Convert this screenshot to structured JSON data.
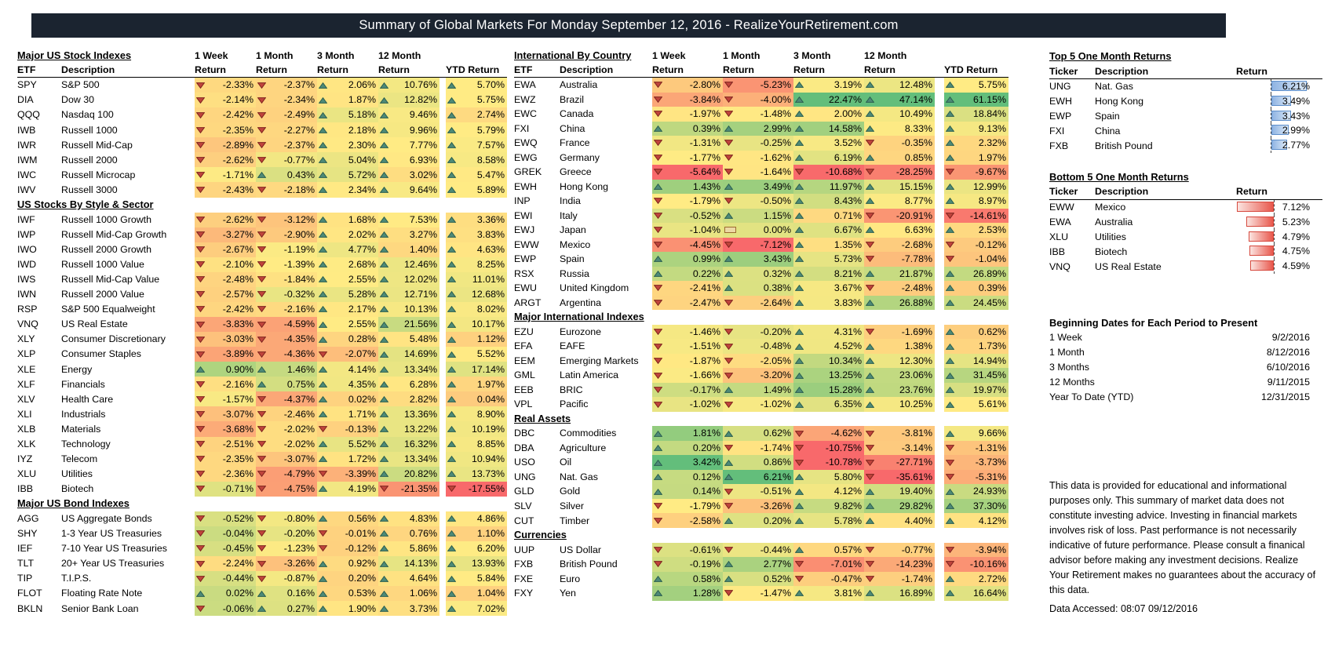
{
  "title_bar": {
    "text": "Summary of Global Markets For Monday September 12, 2016 - RealizeYourRetirement.com"
  },
  "labels": {
    "etf": "ETF",
    "description": "Description",
    "return": "Return",
    "ytd": "YTD Return",
    "ticker": "Ticker"
  },
  "period_headers": [
    "1 Week",
    "1 Month",
    "3 Month",
    "12 Month"
  ],
  "colors": {
    "heat_red": "#F8696B",
    "heat_yellow": "#FFEB84",
    "heat_green": "#63BE7B",
    "up_arrow": "#4E8A78",
    "up_arrow_border": "#2A5F50",
    "down_arrow": "#C0443C",
    "down_arrow_border": "#7E231E",
    "bar_blue": "#8FB4E3",
    "bar_red": "#E8574C",
    "title_bg": "#1B2430"
  },
  "left_table": {
    "sections": [
      {
        "title": "Major US Stock Indexes",
        "rows": [
          {
            "ticker": "SPY",
            "desc": "S&P 500",
            "values": [
              -2.33,
              -2.37,
              2.06,
              10.76,
              5.7
            ]
          },
          {
            "ticker": "DIA",
            "desc": "Dow 30",
            "values": [
              -2.14,
              -2.34,
              1.87,
              12.82,
              5.75
            ]
          },
          {
            "ticker": "QQQ",
            "desc": "Nasdaq 100",
            "values": [
              -2.42,
              -2.49,
              5.18,
              9.46,
              2.74
            ]
          },
          {
            "ticker": "IWB",
            "desc": "Russell 1000",
            "values": [
              -2.35,
              -2.27,
              2.18,
              9.96,
              5.79
            ]
          },
          {
            "ticker": "IWR",
            "desc": "Russell Mid-Cap",
            "values": [
              -2.89,
              -2.37,
              2.3,
              7.77,
              7.57
            ]
          },
          {
            "ticker": "IWM",
            "desc": "Russell 2000",
            "values": [
              -2.62,
              -0.77,
              5.04,
              6.93,
              8.58
            ]
          },
          {
            "ticker": "IWC",
            "desc": "Russell Microcap",
            "values": [
              -1.71,
              0.43,
              5.72,
              3.02,
              5.47
            ]
          },
          {
            "ticker": "IWV",
            "desc": "Russell 3000",
            "values": [
              -2.43,
              -2.18,
              2.34,
              9.64,
              5.89
            ]
          }
        ]
      },
      {
        "title": "US Stocks By Style & Sector",
        "rows": [
          {
            "ticker": "IWF",
            "desc": "Russell 1000 Growth",
            "values": [
              -2.62,
              -3.12,
              1.68,
              7.53,
              3.36
            ]
          },
          {
            "ticker": "IWP",
            "desc": "Russell Mid-Cap Growth",
            "values": [
              -3.27,
              -2.9,
              2.02,
              3.27,
              3.83
            ]
          },
          {
            "ticker": "IWO",
            "desc": "Russell 2000 Growth",
            "values": [
              -2.67,
              -1.19,
              4.77,
              1.4,
              4.63
            ]
          },
          {
            "ticker": "IWD",
            "desc": "Russell 1000 Value",
            "values": [
              -2.1,
              -1.39,
              2.68,
              12.46,
              8.25
            ]
          },
          {
            "ticker": "IWS",
            "desc": "Russell Mid-Cap Value",
            "values": [
              -2.48,
              -1.84,
              2.55,
              12.02,
              11.01
            ]
          },
          {
            "ticker": "IWN",
            "desc": "Russell 2000 Value",
            "values": [
              -2.57,
              -0.32,
              5.28,
              12.71,
              12.68
            ]
          },
          {
            "ticker": "RSP",
            "desc": "S&P 500 Equalweight",
            "values": [
              -2.42,
              -2.16,
              2.17,
              10.13,
              8.02
            ]
          },
          {
            "ticker": "VNQ",
            "desc": "US Real Estate",
            "values": [
              -3.83,
              -4.59,
              2.55,
              21.56,
              10.17
            ]
          },
          {
            "ticker": "XLY",
            "desc": "Consumer Discretionary",
            "values": [
              -3.03,
              -4.35,
              0.28,
              5.48,
              1.12
            ]
          },
          {
            "ticker": "XLP",
            "desc": "Consumer Staples",
            "values": [
              -3.89,
              -4.36,
              -2.07,
              14.69,
              5.52
            ]
          },
          {
            "ticker": "XLE",
            "desc": "Energy",
            "values": [
              0.9,
              1.46,
              4.14,
              13.34,
              17.14
            ]
          },
          {
            "ticker": "XLF",
            "desc": "Financials",
            "values": [
              -2.16,
              0.75,
              4.35,
              6.28,
              1.97
            ]
          },
          {
            "ticker": "XLV",
            "desc": "Health Care",
            "values": [
              -1.57,
              -4.37,
              0.02,
              2.82,
              0.04
            ]
          },
          {
            "ticker": "XLI",
            "desc": "Industrials",
            "values": [
              -3.07,
              -2.46,
              1.71,
              13.36,
              8.9
            ]
          },
          {
            "ticker": "XLB",
            "desc": "Materials",
            "values": [
              -3.68,
              -2.02,
              -0.13,
              13.22,
              10.19
            ]
          },
          {
            "ticker": "XLK",
            "desc": "Technology",
            "values": [
              -2.51,
              -2.02,
              5.52,
              16.32,
              8.85
            ]
          },
          {
            "ticker": "IYZ",
            "desc": "Telecom",
            "values": [
              -2.35,
              -3.07,
              1.72,
              13.34,
              10.94
            ]
          },
          {
            "ticker": "XLU",
            "desc": "Utilities",
            "values": [
              -2.36,
              -4.79,
              -3.39,
              20.82,
              13.73
            ]
          },
          {
            "ticker": "IBB",
            "desc": "Biotech",
            "values": [
              -0.71,
              -4.75,
              4.19,
              -21.35,
              -17.55
            ]
          }
        ]
      },
      {
        "title": "Major US Bond Indexes",
        "rows": [
          {
            "ticker": "AGG",
            "desc": "US Aggregate Bonds",
            "values": [
              -0.52,
              -0.8,
              0.56,
              4.83,
              4.86
            ]
          },
          {
            "ticker": "SHY",
            "desc": "1-3 Year US Treasuries",
            "values": [
              -0.04,
              -0.2,
              -0.01,
              0.76,
              1.1
            ]
          },
          {
            "ticker": "IEF",
            "desc": "7-10 Year US Treasuries",
            "values": [
              -0.45,
              -1.23,
              -0.12,
              5.86,
              6.2
            ]
          },
          {
            "ticker": "TLT",
            "desc": "20+ Year US Treasuries",
            "values": [
              -2.24,
              -3.26,
              0.92,
              14.13,
              13.93
            ]
          },
          {
            "ticker": "TIP",
            "desc": "T.I.P.S.",
            "values": [
              -0.44,
              -0.87,
              0.2,
              4.64,
              5.84
            ]
          },
          {
            "ticker": "FLOT",
            "desc": "Floating Rate Note",
            "values": [
              0.02,
              0.16,
              0.53,
              1.06,
              1.04
            ]
          },
          {
            "ticker": "BKLN",
            "desc": "Senior Bank Loan",
            "values": [
              -0.06,
              0.27,
              1.9,
              3.73,
              7.02
            ]
          }
        ]
      }
    ]
  },
  "middle_table": {
    "sections": [
      {
        "title": "International By Country",
        "rows": [
          {
            "ticker": "EWA",
            "desc": "Australia",
            "values": [
              -2.8,
              -5.23,
              3.19,
              12.48,
              5.75
            ]
          },
          {
            "ticker": "EWZ",
            "desc": "Brazil",
            "values": [
              -3.84,
              -4.0,
              22.47,
              47.14,
              61.15
            ]
          },
          {
            "ticker": "EWC",
            "desc": "Canada",
            "values": [
              -1.97,
              -1.48,
              2.0,
              10.49,
              18.84
            ]
          },
          {
            "ticker": "FXI",
            "desc": "China",
            "values": [
              0.39,
              2.99,
              14.58,
              8.33,
              9.13
            ]
          },
          {
            "ticker": "EWQ",
            "desc": "France",
            "values": [
              -1.31,
              -0.25,
              3.52,
              -0.35,
              2.32
            ]
          },
          {
            "ticker": "EWG",
            "desc": "Germany",
            "values": [
              -1.77,
              -1.62,
              6.19,
              0.85,
              1.97
            ]
          },
          {
            "ticker": "GREK",
            "desc": "Greece",
            "values": [
              -5.64,
              -1.64,
              -10.68,
              -28.25,
              -9.67
            ]
          },
          {
            "ticker": "EWH",
            "desc": "Hong Kong",
            "values": [
              1.43,
              3.49,
              11.97,
              15.15,
              12.99
            ]
          },
          {
            "ticker": "INP",
            "desc": "India",
            "values": [
              -1.79,
              -0.5,
              8.43,
              8.77,
              8.97
            ]
          },
          {
            "ticker": "EWI",
            "desc": "Italy",
            "values": [
              -0.52,
              1.15,
              0.71,
              -20.91,
              -14.61
            ]
          },
          {
            "ticker": "EWJ",
            "desc": "Japan",
            "values": [
              -1.04,
              0.0,
              6.67,
              6.63,
              2.53
            ]
          },
          {
            "ticker": "EWW",
            "desc": "Mexico",
            "values": [
              -4.45,
              -7.12,
              1.35,
              -2.68,
              -0.12
            ]
          },
          {
            "ticker": "EWP",
            "desc": "Spain",
            "values": [
              0.99,
              3.43,
              5.73,
              -7.78,
              -1.04
            ]
          },
          {
            "ticker": "RSX",
            "desc": "Russia",
            "values": [
              0.22,
              0.32,
              8.21,
              21.87,
              26.89
            ]
          },
          {
            "ticker": "EWU",
            "desc": "United Kingdom",
            "values": [
              -2.41,
              0.38,
              3.67,
              -2.48,
              0.39
            ]
          },
          {
            "ticker": "ARGT",
            "desc": "Argentina",
            "values": [
              -2.47,
              -2.64,
              3.83,
              26.88,
              24.45
            ]
          }
        ]
      },
      {
        "title": "Major International Indexes",
        "rows": [
          {
            "ticker": "EZU",
            "desc": "Eurozone",
            "values": [
              -1.46,
              -0.2,
              4.31,
              -1.69,
              0.62
            ]
          },
          {
            "ticker": "EFA",
            "desc": "EAFE",
            "values": [
              -1.51,
              -0.48,
              4.52,
              1.38,
              1.73
            ]
          },
          {
            "ticker": "EEM",
            "desc": "Emerging Markets",
            "values": [
              -1.87,
              -2.05,
              10.34,
              12.3,
              14.94
            ]
          },
          {
            "ticker": "GML",
            "desc": "Latin America",
            "values": [
              -1.66,
              -3.2,
              13.25,
              23.06,
              31.45
            ]
          },
          {
            "ticker": "EEB",
            "desc": "BRIC",
            "values": [
              -0.17,
              1.49,
              15.28,
              23.76,
              19.97
            ]
          },
          {
            "ticker": "VPL",
            "desc": "Pacific",
            "values": [
              -1.02,
              -1.02,
              6.35,
              10.25,
              5.61
            ]
          }
        ]
      },
      {
        "title": "Real Assets",
        "rows": [
          {
            "ticker": "DBC",
            "desc": "Commodities",
            "values": [
              1.81,
              0.62,
              -4.62,
              -3.81,
              9.66
            ]
          },
          {
            "ticker": "DBA",
            "desc": "Agriculture",
            "values": [
              0.2,
              -1.74,
              -10.75,
              -3.14,
              -1.31
            ]
          },
          {
            "ticker": "USO",
            "desc": "Oil",
            "values": [
              3.42,
              0.86,
              -10.78,
              -27.71,
              -3.73
            ]
          },
          {
            "ticker": "UNG",
            "desc": "Nat. Gas",
            "values": [
              0.12,
              6.21,
              5.8,
              -35.61,
              -5.31
            ]
          },
          {
            "ticker": "GLD",
            "desc": "Gold",
            "values": [
              0.14,
              -0.51,
              4.12,
              19.4,
              24.93
            ]
          },
          {
            "ticker": "SLV",
            "desc": "Silver",
            "values": [
              -1.79,
              -3.26,
              9.82,
              29.82,
              37.3
            ]
          },
          {
            "ticker": "CUT",
            "desc": "Timber",
            "values": [
              -2.58,
              0.2,
              5.78,
              4.4,
              4.12
            ]
          }
        ]
      },
      {
        "title": "Currencies",
        "rows": [
          {
            "ticker": "UUP",
            "desc": "US Dollar",
            "values": [
              -0.61,
              -0.44,
              0.57,
              -0.77,
              -3.94
            ]
          },
          {
            "ticker": "FXB",
            "desc": "British Pound",
            "values": [
              -0.19,
              2.77,
              -7.01,
              -14.23,
              -10.16
            ]
          },
          {
            "ticker": "FXE",
            "desc": "Euro",
            "values": [
              0.58,
              0.52,
              -0.47,
              -1.74,
              2.72
            ]
          },
          {
            "ticker": "FXY",
            "desc": "Yen",
            "values": [
              1.28,
              -1.47,
              3.81,
              16.89,
              16.64
            ]
          }
        ]
      }
    ]
  },
  "right_panel": {
    "top5": {
      "title": "Top 5 One Month Returns",
      "rows": [
        {
          "ticker": "UNG",
          "desc": "Nat. Gas",
          "value": 6.21,
          "display": "6.21%"
        },
        {
          "ticker": "EWH",
          "desc": "Hong Kong",
          "value": 3.49,
          "display": "3.49%"
        },
        {
          "ticker": "EWP",
          "desc": "Spain",
          "value": 3.43,
          "display": "3.43%"
        },
        {
          "ticker": "FXI",
          "desc": "China",
          "value": 2.99,
          "display": "2.99%"
        },
        {
          "ticker": "FXB",
          "desc": "British Pound",
          "value": 2.77,
          "display": "2.77%"
        }
      ]
    },
    "bottom5": {
      "title": "Bottom 5 One Month Returns",
      "rows": [
        {
          "ticker": "EWW",
          "desc": "Mexico",
          "value": -7.12,
          "display": "7.12%"
        },
        {
          "ticker": "EWA",
          "desc": "Australia",
          "value": -5.23,
          "display": "5.23%"
        },
        {
          "ticker": "XLU",
          "desc": "Utilities",
          "value": -4.79,
          "display": "4.79%"
        },
        {
          "ticker": "IBB",
          "desc": "Biotech",
          "value": -4.75,
          "display": "4.75%"
        },
        {
          "ticker": "VNQ",
          "desc": "US Real Estate",
          "value": -4.59,
          "display": "4.59%"
        }
      ]
    },
    "dates": {
      "title": "Beginning Dates for Each Period to Present",
      "rows": [
        {
          "label": "1 Week",
          "date": "9/2/2016"
        },
        {
          "label": "1 Month",
          "date": "8/12/2016"
        },
        {
          "label": "3 Months",
          "date": "6/10/2016"
        },
        {
          "label": "12 Months",
          "date": "9/11/2015"
        },
        {
          "label": "Year To Date (YTD)",
          "date": "12/31/2015"
        }
      ]
    },
    "disclaimer": "This data is provided for educational and informational purposes only. This summary of market data does not constitute investing advice. Investing in financial markets involves risk of loss.  Past performance is not necessarily  indicative of future performance. Please consult a finanical advisor before making any investment decisions. Realize Your Retirement makes no guarantees about the accuracy of this data.",
    "data_accessed": "Data Accessed: 08:07 09/12/2016"
  }
}
